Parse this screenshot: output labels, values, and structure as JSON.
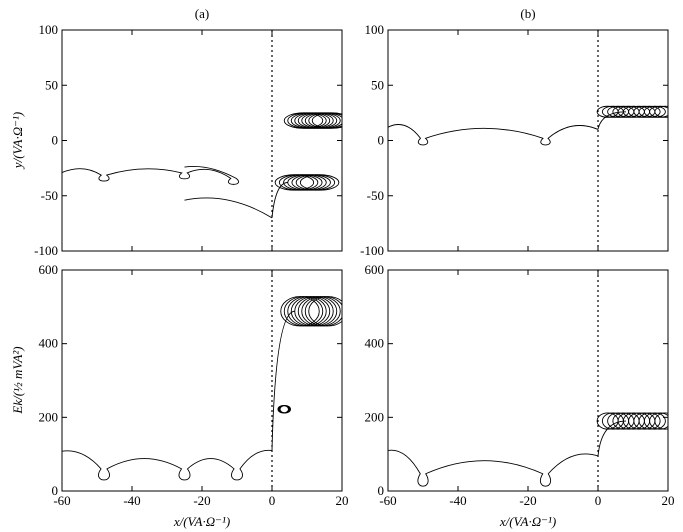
{
  "chart_data": [
    {
      "type": "line",
      "panel_label": "(a)",
      "xlabel": "",
      "ylabel": "y/(VA·Ω⁻¹)",
      "xlim": [
        -60,
        20
      ],
      "ylim": [
        -100,
        100
      ],
      "xticks": [],
      "yticks": [
        "100",
        "50",
        "0",
        "-50",
        "-100"
      ],
      "vertical_reference_line_x": 0,
      "series": [
        {
          "cycloid_drift": [
            {
              "x0": -60,
              "y0": -29,
              "x1": -25,
              "y1": -24,
              "loops": [
                [
                  -48,
                  -34
                ],
                [
                  -25,
                  -32
                ],
                [
                  -11,
                  -37
                ]
              ],
              "loop_rx": 2.6,
              "loop_ry": 4.5
            },
            {
              "x0": -25,
              "y0": -54,
              "x1": 0,
              "y1": -70,
              "loops": [],
              "loop_rx": 2,
              "loop_ry": 3
            }
          ],
          "gyration_clusters": [
            {
              "cx": 10,
              "cy": -38,
              "rx": 5.5,
              "ry": 7,
              "n": 7,
              "dx": 1.2
            },
            {
              "cx": 13,
              "cy": 18,
              "rx": 5.5,
              "ry": 7,
              "n": 9,
              "dx": 1.0
            }
          ]
        }
      ]
    },
    {
      "type": "line",
      "panel_label": "(b)",
      "xlabel": "",
      "ylabel": "",
      "xlim": [
        -60,
        20
      ],
      "ylim": [
        -100,
        100
      ],
      "xticks": [],
      "yticks": [
        "100",
        "50",
        "0",
        "-50",
        "-100"
      ],
      "vertical_reference_line_x": 0,
      "series": [
        {
          "cycloid_drift": [
            {
              "x0": -60,
              "y0": 12,
              "x1": 0,
              "y1": 10,
              "loops": [
                [
                  -50,
                  -1
                ],
                [
                  -15,
                  -1
                ]
              ],
              "loop_rx": 2.4,
              "loop_ry": 5
            }
          ],
          "gyration_clusters": [
            {
              "cx": 11,
              "cy": 26,
              "rx": 3,
              "ry": 5,
              "n": 12,
              "dx": 1.5
            }
          ]
        }
      ]
    },
    {
      "type": "line",
      "panel_label": "",
      "xlabel": "x/(VA·Ω⁻¹)",
      "ylabel": "Ek/(½ mVA²)",
      "xlim": [
        -60,
        20
      ],
      "ylim": [
        0,
        600
      ],
      "xticks": [
        "-60",
        "-40",
        "-20",
        "0",
        "20"
      ],
      "yticks": [
        "600",
        "400",
        "200",
        "0"
      ],
      "vertical_reference_line_x": 0,
      "series": [
        {
          "cycloid_drift": [
            {
              "x0": -60,
              "y0": 108,
              "x1": 0,
              "y1": 110,
              "loops": [
                [
                  -48,
                  45
                ],
                [
                  -25,
                  45
                ],
                [
                  -10,
                  45
                ]
              ],
              "loop_rx": 2.8,
              "loop_ry": 25
            }
          ],
          "gyration_clusters": [
            {
              "cx": 12,
              "cy": 488,
              "rx": 5.5,
              "ry": 40,
              "n": 9,
              "dx": 1.0
            },
            {
              "cx": 3.5,
              "cy": 222,
              "rx": 1.5,
              "ry": 10,
              "n": 4,
              "dx": 0.2
            }
          ]
        }
      ]
    },
    {
      "type": "line",
      "panel_label": "",
      "xlabel": "x/(VA·Ω⁻¹)",
      "ylabel": "",
      "xlim": [
        -60,
        20
      ],
      "ylim": [
        0,
        600
      ],
      "xticks": [
        "-60",
        "-40",
        "-20",
        "0",
        "20"
      ],
      "yticks": [
        "600",
        "400",
        "200",
        "0"
      ],
      "vertical_reference_line_x": 0,
      "series": [
        {
          "cycloid_drift": [
            {
              "x0": -60,
              "y0": 110,
              "x1": 0,
              "y1": 95,
              "loops": [
                [
                  -50,
                  30
                ],
                [
                  -15,
                  30
                ]
              ],
              "loop_rx": 2.6,
              "loop_ry": 28
            }
          ],
          "gyration_clusters": [
            {
              "cx": 11,
              "cy": 190,
              "rx": 3,
              "ry": 22,
              "n": 12,
              "dx": 1.5
            }
          ]
        }
      ]
    }
  ]
}
